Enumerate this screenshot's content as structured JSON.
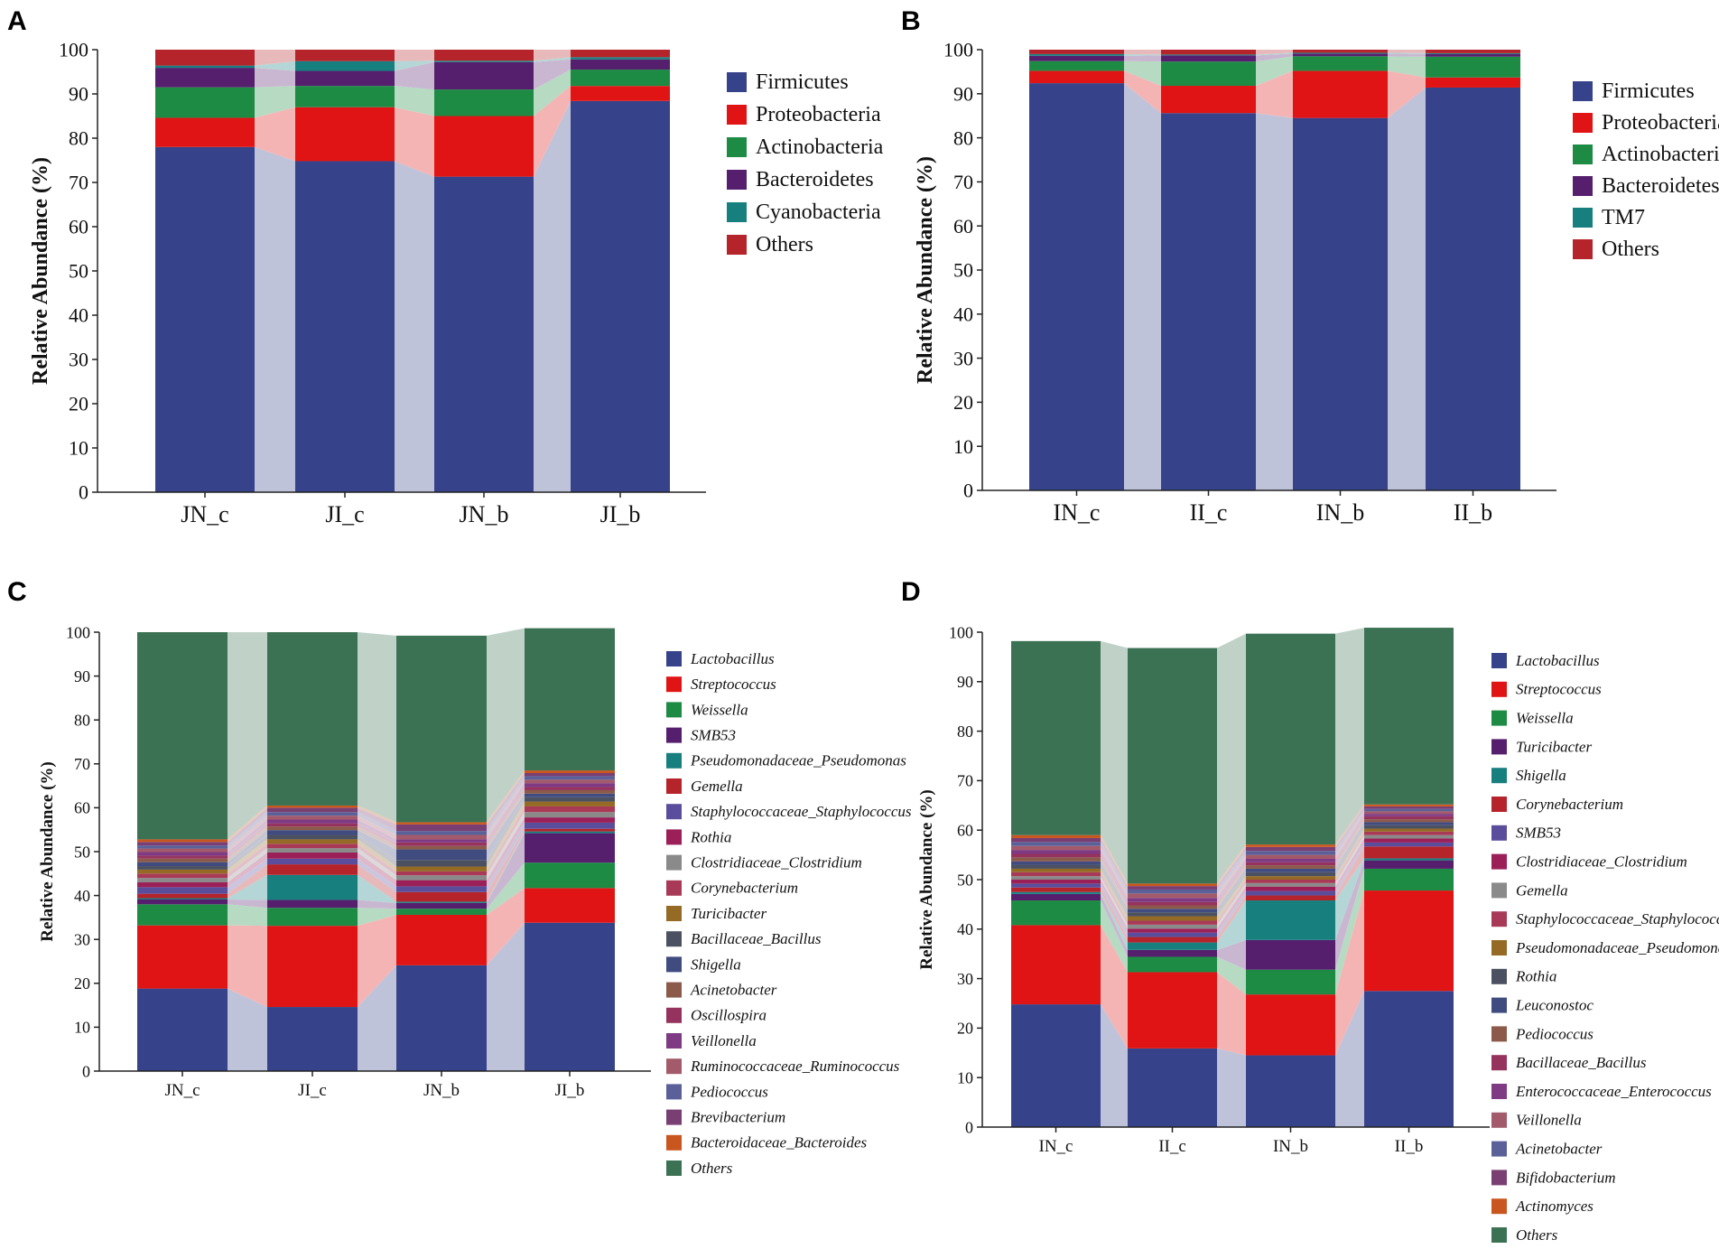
{
  "chart_data": [
    {
      "panel": "A",
      "type": "bar",
      "stacked": true,
      "title": "",
      "xlabel": "",
      "ylabel": "Relative Abundance (%)",
      "ylim": [
        0,
        100
      ],
      "yticks": [
        "0",
        "10",
        "20",
        "30",
        "40",
        "50",
        "60",
        "70",
        "80",
        "90",
        "100"
      ],
      "categories": [
        "JN_c",
        "JI_c",
        "JN_b",
        "JI_b"
      ],
      "italic_legend": false,
      "series": [
        {
          "name": "Firmicutes",
          "color": "#36438A",
          "values": [
            78,
            74.8,
            71.3,
            88.4
          ]
        },
        {
          "name": "Proteobacteria",
          "color": "#E01414",
          "values": [
            6.6,
            12.2,
            13.7,
            3.4
          ]
        },
        {
          "name": "Actinobacteria",
          "color": "#1E8B45",
          "values": [
            6.9,
            4.8,
            6.0,
            3.7
          ]
        },
        {
          "name": "Bacteroidetes",
          "color": "#561F6E",
          "values": [
            4.4,
            3.4,
            6.2,
            2.3
          ]
        },
        {
          "name": "Cyanobacteria",
          "color": "#17807F",
          "values": [
            0.5,
            2.2,
            0.3,
            0.5
          ]
        },
        {
          "name": "Others",
          "color": "#B5232B",
          "values": [
            3.6,
            2.6,
            2.5,
            1.7
          ]
        }
      ]
    },
    {
      "panel": "B",
      "type": "bar",
      "stacked": true,
      "title": "",
      "xlabel": "",
      "ylabel": "Relative Abundance (%)",
      "ylim": [
        0,
        100
      ],
      "yticks": [
        "0",
        "10",
        "20",
        "30",
        "40",
        "50",
        "60",
        "70",
        "80",
        "90",
        "100"
      ],
      "categories": [
        "IN_c",
        "II_c",
        "IN_b",
        "II_b"
      ],
      "italic_legend": false,
      "series": [
        {
          "name": "Firmicutes",
          "color": "#36438A",
          "values": [
            92.4,
            85.6,
            84.5,
            91.4
          ]
        },
        {
          "name": "Proteobacteria",
          "color": "#E01414",
          "values": [
            2.8,
            6.2,
            10.7,
            2.3
          ]
        },
        {
          "name": "Actinobacteria",
          "color": "#1E8B45",
          "values": [
            2.2,
            5.5,
            3.3,
            4.7
          ]
        },
        {
          "name": "Bacteroidetes",
          "color": "#561F6E",
          "values": [
            1.2,
            1.4,
            0.6,
            0.6
          ]
        },
        {
          "name": "TM7",
          "color": "#17807F",
          "values": [
            0.4,
            0.2,
            0.2,
            0.2
          ]
        },
        {
          "name": "Others",
          "color": "#B5232B",
          "values": [
            1.0,
            1.1,
            0.7,
            0.8
          ]
        }
      ]
    },
    {
      "panel": "C",
      "type": "bar",
      "stacked": true,
      "title": "",
      "xlabel": "",
      "ylabel": "Relative Abundance (%)",
      "ylim": [
        0,
        100
      ],
      "yticks": [
        "0",
        "10",
        "20",
        "30",
        "40",
        "50",
        "60",
        "70",
        "80",
        "90",
        "100"
      ],
      "categories": [
        "JN_c",
        "JI_c",
        "JN_b",
        "JI_b"
      ],
      "italic_legend": true,
      "series": [
        {
          "name": "Lactobacillus",
          "color": "#36438A",
          "values": [
            18.8,
            14.6,
            24.1,
            33.8
          ]
        },
        {
          "name": "Streptococcus",
          "color": "#E01414",
          "values": [
            14.4,
            18.5,
            11.5,
            7.9
          ]
        },
        {
          "name": "Weissella",
          "color": "#1E8B45",
          "values": [
            4.8,
            4.1,
            1.4,
            5.8
          ]
        },
        {
          "name": "SMB53",
          "color": "#561F6E",
          "values": [
            1.1,
            1.8,
            1.3,
            6.7
          ]
        },
        {
          "name": "Pseudomonadaceae_Pseudomonas",
          "color": "#17807F",
          "values": [
            0.3,
            5.7,
            0.3,
            0.4
          ]
        },
        {
          "name": "Gemella",
          "color": "#B5232B",
          "values": [
            1.0,
            2.4,
            2.2,
            0.6
          ]
        },
        {
          "name": "Staphylococcaceae_Staphylococcus",
          "color": "#5A4E9C",
          "values": [
            1.5,
            1.3,
            1.3,
            1.4
          ]
        },
        {
          "name": "Rothia",
          "color": "#9C2058",
          "values": [
            1.1,
            1.4,
            1.4,
            1.2
          ]
        },
        {
          "name": "Clostridiaceae_Clostridium",
          "color": "#8A8A8A",
          "values": [
            1.0,
            1.0,
            1.1,
            1.2
          ]
        },
        {
          "name": "Corynebacterium",
          "color": "#A83A57",
          "values": [
            1.0,
            1.0,
            0.9,
            1.3
          ]
        },
        {
          "name": "Turicibacter",
          "color": "#946A25",
          "values": [
            0.9,
            1.0,
            1.1,
            1.1
          ]
        },
        {
          "name": "Bacillaceae_Bacillus",
          "color": "#4B5160",
          "values": [
            0.8,
            1.0,
            1.5,
            1.0
          ]
        },
        {
          "name": "Shigella",
          "color": "#404B80",
          "values": [
            0.9,
            1.1,
            2.4,
            0.8
          ]
        },
        {
          "name": "Acinetobacter",
          "color": "#8B5A4B",
          "values": [
            0.8,
            0.8,
            0.8,
            0.8
          ]
        },
        {
          "name": "Oscillospira",
          "color": "#95335E",
          "values": [
            0.7,
            0.7,
            0.8,
            0.7
          ]
        },
        {
          "name": "Veillonella",
          "color": "#7E3A82",
          "values": [
            0.8,
            0.9,
            0.7,
            0.9
          ]
        },
        {
          "name": "Ruminococcaceae_Ruminococcus",
          "color": "#A35A6A",
          "values": [
            0.8,
            0.9,
            1.0,
            0.8
          ]
        },
        {
          "name": "Pediococcus",
          "color": "#5B6198",
          "values": [
            0.7,
            0.8,
            0.9,
            0.8
          ]
        },
        {
          "name": "Brevibacterium",
          "color": "#7A3F72",
          "values": [
            0.8,
            1.0,
            1.5,
            0.7
          ]
        },
        {
          "name": "Bacteroidaceae_Bacteroides",
          "color": "#C9561E",
          "values": [
            0.6,
            0.5,
            0.5,
            0.6
          ]
        },
        {
          "name": "Others",
          "color": "#3B7254",
          "values": [
            47.2,
            39.5,
            42.5,
            32.4
          ]
        }
      ]
    },
    {
      "panel": "D",
      "type": "bar",
      "stacked": true,
      "title": "",
      "xlabel": "",
      "ylabel": "Relative Abundance (%)",
      "ylim": [
        0,
        100
      ],
      "yticks": [
        "0",
        "10",
        "20",
        "30",
        "40",
        "50",
        "60",
        "70",
        "80",
        "90",
        "100"
      ],
      "categories": [
        "IN_c",
        "II_c",
        "IN_b",
        "II_b"
      ],
      "italic_legend": true,
      "series": [
        {
          "name": "Lactobacillus",
          "color": "#36438A",
          "values": [
            24.8,
            15.9,
            14.5,
            27.5
          ]
        },
        {
          "name": "Streptococcus",
          "color": "#E01414",
          "values": [
            16.0,
            15.4,
            12.3,
            20.3
          ]
        },
        {
          "name": "Weissella",
          "color": "#1E8B45",
          "values": [
            5.0,
            3.1,
            5.0,
            4.4
          ]
        },
        {
          "name": "Turicibacter",
          "color": "#561F6E",
          "values": [
            1.3,
            1.4,
            6.0,
            1.7
          ]
        },
        {
          "name": "Shigella",
          "color": "#17807F",
          "values": [
            0.4,
            1.5,
            8.0,
            0.4
          ]
        },
        {
          "name": "Corynebacterium",
          "color": "#B5232B",
          "values": [
            0.9,
            1.1,
            1.0,
            2.4
          ]
        },
        {
          "name": "SMB53",
          "color": "#5A4E9C",
          "values": [
            0.8,
            0.9,
            0.9,
            0.8
          ]
        },
        {
          "name": "Clostridiaceae_Clostridium",
          "color": "#9C2058",
          "values": [
            0.8,
            0.8,
            0.9,
            0.8
          ]
        },
        {
          "name": "Gemella",
          "color": "#8A8A8A",
          "values": [
            0.7,
            0.8,
            0.7,
            0.7
          ]
        },
        {
          "name": "Staphylococcaceae_Staphylococcus",
          "color": "#A83A57",
          "values": [
            0.8,
            0.8,
            0.7,
            0.7
          ]
        },
        {
          "name": "Pseudomonadaceae_Pseudomonas",
          "color": "#946A25",
          "values": [
            0.7,
            0.9,
            0.7,
            0.6
          ]
        },
        {
          "name": "Rothia",
          "color": "#4B5160",
          "values": [
            0.8,
            0.8,
            0.8,
            0.7
          ]
        },
        {
          "name": "Leuconostoc",
          "color": "#404B80",
          "values": [
            0.7,
            0.7,
            0.7,
            0.6
          ]
        },
        {
          "name": "Pediococcus",
          "color": "#8B5A4B",
          "values": [
            0.8,
            0.7,
            0.7,
            0.6
          ]
        },
        {
          "name": "Bacillaceae_Bacillus",
          "color": "#95335E",
          "values": [
            0.7,
            0.7,
            0.6,
            0.6
          ]
        },
        {
          "name": "Enterococcaceae_Enterococcus",
          "color": "#7E3A82",
          "values": [
            0.8,
            0.8,
            0.7,
            0.5
          ]
        },
        {
          "name": "Veillonella",
          "color": "#A35A6A",
          "values": [
            0.8,
            0.9,
            0.8,
            0.5
          ]
        },
        {
          "name": "Acinetobacter",
          "color": "#5B6198",
          "values": [
            0.8,
            0.8,
            0.8,
            0.5
          ]
        },
        {
          "name": "Bifidobacterium",
          "color": "#7A3F72",
          "values": [
            0.8,
            0.7,
            0.8,
            0.5
          ]
        },
        {
          "name": "Actinomyces",
          "color": "#C9561E",
          "values": [
            0.6,
            0.5,
            0.5,
            0.4
          ]
        },
        {
          "name": "Others",
          "color": "#3B7254",
          "values": [
            39.2,
            47.6,
            42.6,
            35.7
          ]
        }
      ]
    }
  ]
}
